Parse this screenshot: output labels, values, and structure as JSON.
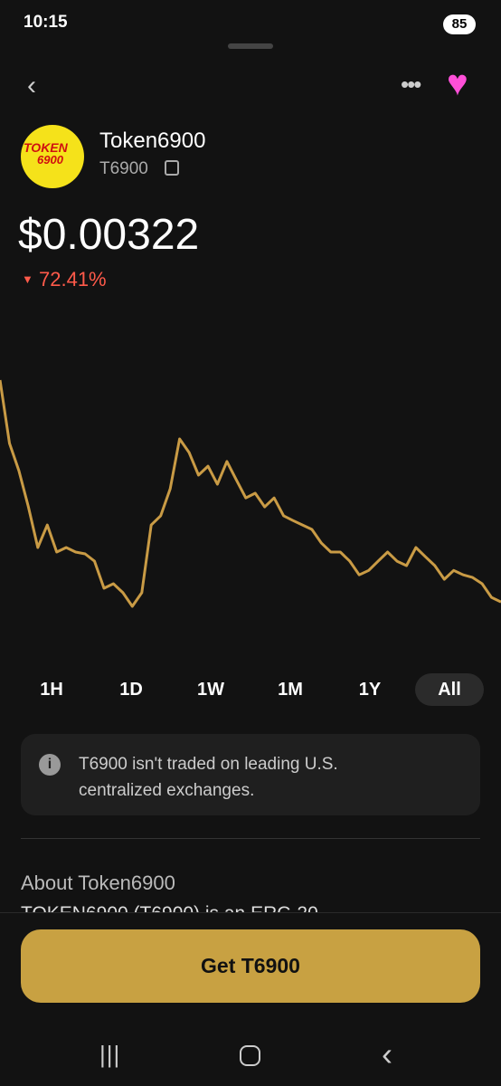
{
  "status": {
    "time": "10:15",
    "battery": "85"
  },
  "token": {
    "logo_text": [
      "TOKEN",
      "6900"
    ],
    "name": "Token6900",
    "symbol": "T6900",
    "price": "$0.00322",
    "change": "72.41%"
  },
  "chart_data": {
    "type": "line",
    "color": "#c99b45",
    "values": [
      0.01167,
      0.00926,
      0.00822,
      0.00684,
      0.00529,
      0.00615,
      0.00512,
      0.00529,
      0.00512,
      0.00505,
      0.00477,
      0.00374,
      0.00391,
      0.00357,
      0.00305,
      0.00357,
      0.00615,
      0.0065,
      0.00753,
      0.00943,
      0.00891,
      0.00805,
      0.00839,
      0.0077,
      0.00857,
      0.00787,
      0.00718,
      0.00736,
      0.00684,
      0.00718,
      0.0065,
      0.00632,
      0.00615,
      0.00598,
      0.00546,
      0.00512,
      0.00512,
      0.00477,
      0.00425,
      0.00442,
      0.00477,
      0.00512,
      0.00477,
      0.0046,
      0.00529,
      0.00494,
      0.0046,
      0.00408,
      0.00442,
      0.00425,
      0.00415,
      0.00391,
      0.00339,
      0.00322
    ],
    "ylim": [
      0.00236,
      0.01236
    ]
  },
  "ranges": {
    "labels": [
      "1H",
      "1D",
      "1W",
      "1M",
      "1Y",
      "All"
    ],
    "selected": 5
  },
  "notice": {
    "text": "T6900 isn't traded on leading U.S. centralized exchanges."
  },
  "about": {
    "title": "About Token6900",
    "text": "TOKEN6900 (T6900) is an ERC-20"
  },
  "button": {
    "label": "Get T6900"
  }
}
